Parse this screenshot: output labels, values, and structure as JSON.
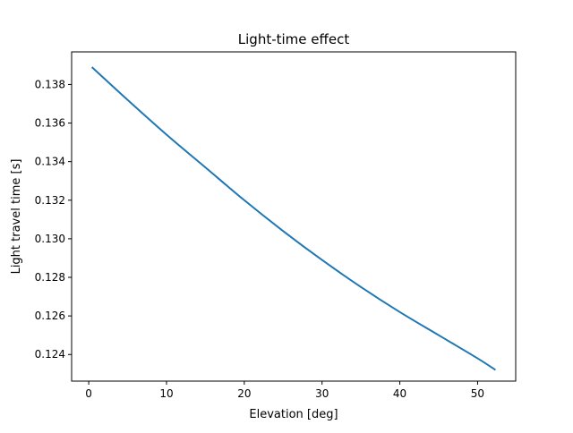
{
  "chart_data": {
    "type": "line",
    "title": "Light-time effect",
    "xlabel": "Elevation [deg]",
    "ylabel": "Light travel time [s]",
    "xlim": [
      -2.2,
      54.9
    ],
    "ylim": [
      0.12262,
      0.13969
    ],
    "xticks": [
      0,
      10,
      20,
      30,
      40,
      50
    ],
    "yticks": [
      0.124,
      0.126,
      0.128,
      0.13,
      0.132,
      0.134,
      0.136,
      0.138
    ],
    "xtick_labels": [
      "0",
      "10",
      "20",
      "30",
      "40",
      "50"
    ],
    "ytick_labels": [
      "0.124",
      "0.126",
      "0.128",
      "0.130",
      "0.132",
      "0.134",
      "0.136",
      "0.138"
    ],
    "grid": false,
    "series": [
      {
        "color": "#1f77b4",
        "x": [
          0.4,
          5,
          10,
          15,
          20,
          25,
          30,
          35,
          40,
          45,
          50,
          52.3
        ],
        "y": [
          0.1389,
          0.1372,
          0.1354,
          0.1337,
          0.132,
          0.1304,
          0.1289,
          0.1275,
          0.1262,
          0.125,
          0.1238,
          0.1232
        ]
      }
    ]
  }
}
